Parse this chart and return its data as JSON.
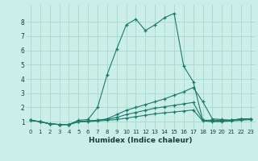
{
  "title": "",
  "xlabel": "Humidex (Indice chaleur)",
  "bg_color": "#cceee8",
  "grid_color": "#aaddcc",
  "line_color": "#1a7a6a",
  "xlim": [
    -0.5,
    23.5
  ],
  "ylim": [
    0.5,
    9.2
  ],
  "xticks": [
    0,
    1,
    2,
    3,
    4,
    5,
    6,
    7,
    8,
    9,
    10,
    11,
    12,
    13,
    14,
    15,
    16,
    17,
    18,
    19,
    20,
    21,
    22,
    23
  ],
  "yticks": [
    1,
    2,
    3,
    4,
    5,
    6,
    7,
    8
  ],
  "series": [
    {
      "x": [
        0,
        1,
        2,
        3,
        4,
        5,
        6,
        7,
        8,
        9,
        10,
        11,
        12,
        13,
        14,
        15,
        16,
        17,
        18,
        19,
        20,
        21,
        22,
        23
      ],
      "y": [
        1.1,
        1.0,
        0.85,
        0.8,
        0.8,
        1.1,
        1.15,
        2.0,
        4.3,
        6.1,
        7.8,
        8.2,
        7.4,
        7.8,
        8.3,
        8.6,
        4.9,
        3.8,
        1.1,
        1.1,
        1.1,
        1.1,
        1.2,
        1.2
      ]
    },
    {
      "x": [
        0,
        1,
        2,
        3,
        4,
        5,
        6,
        7,
        8,
        9,
        10,
        11,
        12,
        13,
        14,
        15,
        16,
        17,
        18,
        19,
        20,
        21,
        22,
        23
      ],
      "y": [
        1.1,
        1.0,
        0.85,
        0.8,
        0.8,
        1.0,
        1.05,
        1.1,
        1.2,
        1.5,
        1.8,
        2.0,
        2.2,
        2.4,
        2.6,
        2.85,
        3.1,
        3.4,
        2.4,
        1.2,
        1.15,
        1.1,
        1.2,
        1.2
      ]
    },
    {
      "x": [
        0,
        1,
        2,
        3,
        4,
        5,
        6,
        7,
        8,
        9,
        10,
        11,
        12,
        13,
        14,
        15,
        16,
        17,
        18,
        19,
        20,
        21,
        22,
        23
      ],
      "y": [
        1.1,
        1.0,
        0.85,
        0.8,
        0.8,
        1.0,
        1.05,
        1.1,
        1.15,
        1.3,
        1.5,
        1.65,
        1.8,
        1.95,
        2.05,
        2.15,
        2.25,
        2.35,
        1.1,
        1.05,
        1.05,
        1.1,
        1.15,
        1.2
      ]
    },
    {
      "x": [
        0,
        1,
        2,
        3,
        4,
        5,
        6,
        7,
        8,
        9,
        10,
        11,
        12,
        13,
        14,
        15,
        16,
        17,
        18,
        19,
        20,
        21,
        22,
        23
      ],
      "y": [
        1.1,
        1.0,
        0.85,
        0.8,
        0.8,
        1.0,
        1.0,
        1.05,
        1.1,
        1.15,
        1.25,
        1.35,
        1.45,
        1.55,
        1.62,
        1.68,
        1.75,
        1.82,
        1.05,
        1.0,
        1.0,
        1.05,
        1.1,
        1.15
      ]
    }
  ]
}
